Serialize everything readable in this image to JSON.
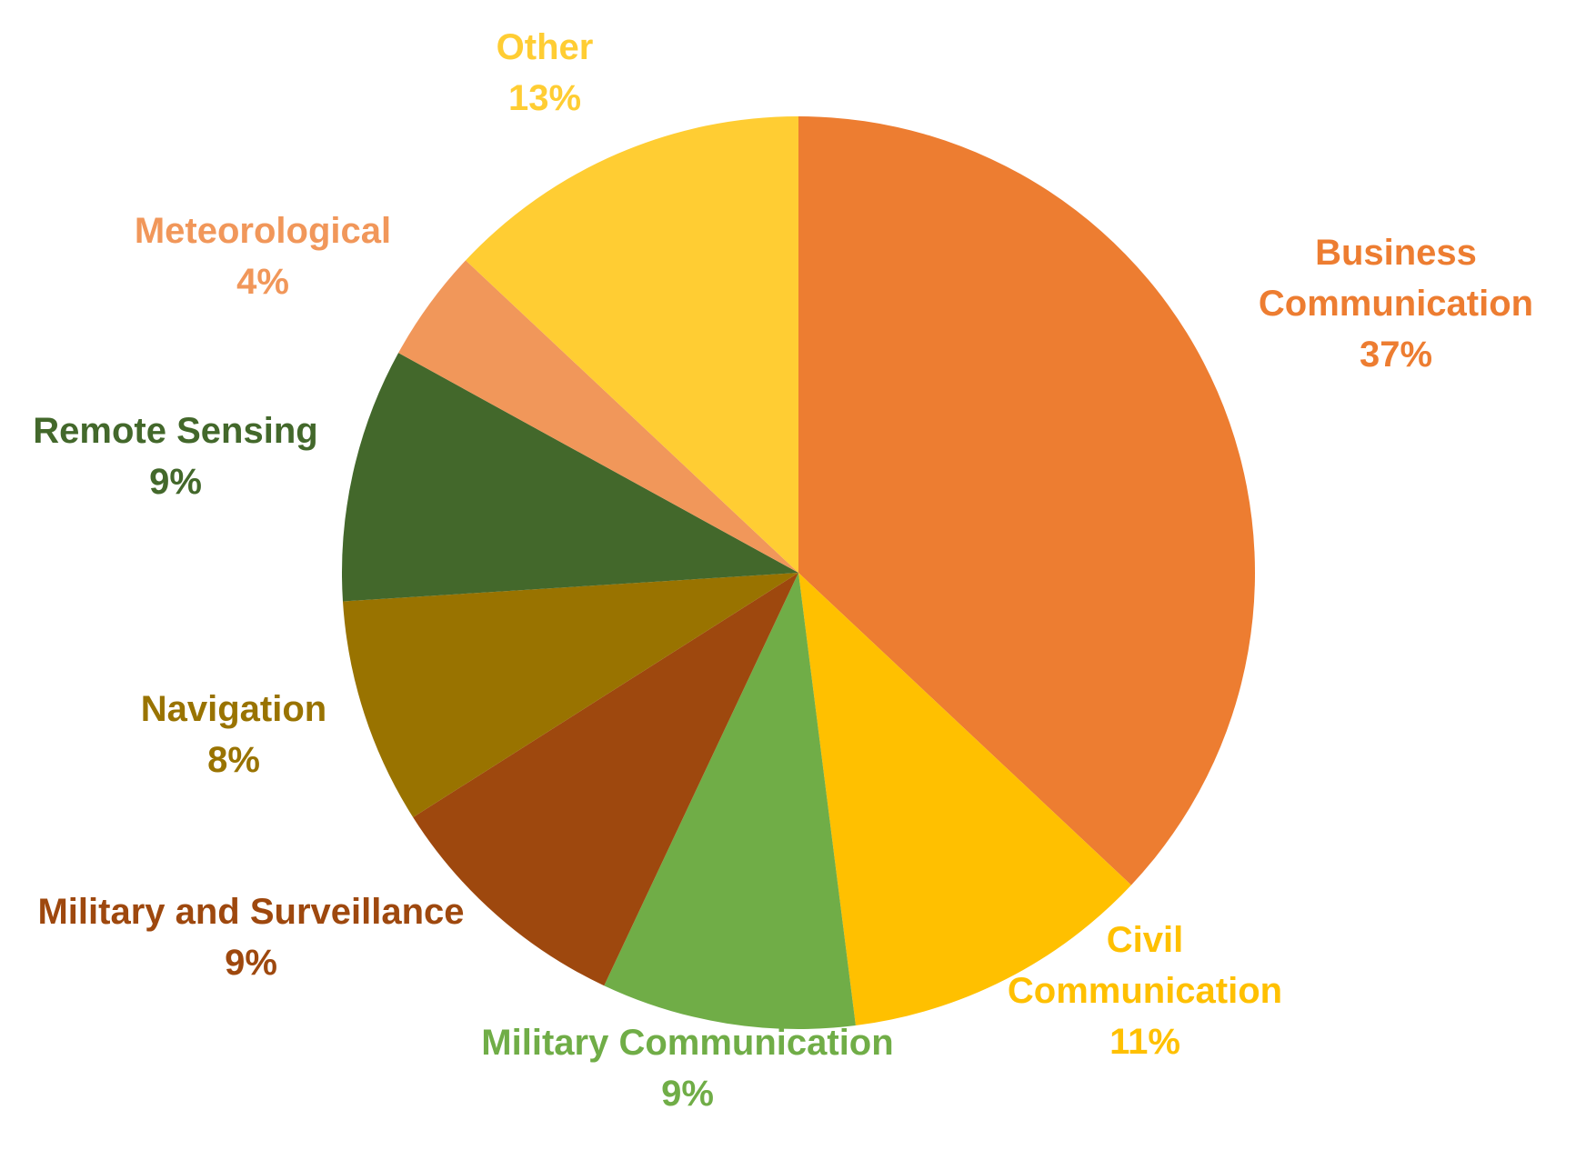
{
  "chart_data": {
    "type": "pie",
    "title": "",
    "start_angle_deg": 0,
    "direction": "clockwise",
    "slices": [
      {
        "label_lines": [
          "Business",
          "Communication"
        ],
        "percent_label": "37%",
        "value": 37,
        "color": "#ED7D31"
      },
      {
        "label_lines": [
          "Civil",
          "Communication"
        ],
        "percent_label": "11%",
        "value": 11,
        "color": "#FFC000"
      },
      {
        "label_lines": [
          "Military Communication"
        ],
        "percent_label": "9%",
        "value": 9,
        "color": "#70AD47"
      },
      {
        "label_lines": [
          "Military and Surveillance"
        ],
        "percent_label": "9%",
        "value": 9,
        "color": "#9E480E"
      },
      {
        "label_lines": [
          "Navigation"
        ],
        "percent_label": "8%",
        "value": 8,
        "color": "#997300"
      },
      {
        "label_lines": [
          "Remote Sensing"
        ],
        "percent_label": "9%",
        "value": 9,
        "color": "#43682B"
      },
      {
        "label_lines": [
          "Meteorological"
        ],
        "percent_label": "4%",
        "value": 4,
        "color": "#F1975A"
      },
      {
        "label_lines": [
          "Other"
        ],
        "percent_label": "13%",
        "value": 13,
        "color": "#FFCD33"
      }
    ]
  }
}
